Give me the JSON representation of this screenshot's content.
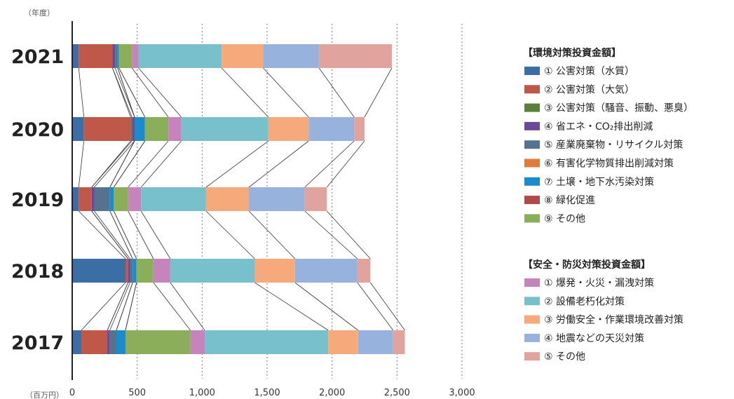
{
  "chart_data": {
    "type": "bar",
    "orientation": "horizontal",
    "stacked": true,
    "y_unit_label": "（年度）",
    "x_unit_label": "（百万円）",
    "xlim": [
      0,
      3000
    ],
    "x_ticks": [
      0,
      500,
      1000,
      1500,
      2000,
      2500,
      3000
    ],
    "x_tick_labels": [
      "0",
      "500",
      "1,000",
      "1,500",
      "2,000",
      "2,500",
      "3,000"
    ],
    "grid": "vertical-dotted",
    "legend_placement": "right",
    "categories": [
      "2021",
      "2020",
      "2019",
      "2018",
      "2017"
    ],
    "series": [
      {
        "name": "① 公害対策（水質）",
        "group": 0,
        "color": "#3a6ea5",
        "values": [
          50,
          90,
          50,
          410,
          70
        ]
      },
      {
        "name": "② 公害対策（大気）",
        "group": 0,
        "color": "#c0584a",
        "values": [
          260,
          360,
          100,
          20,
          200
        ]
      },
      {
        "name": "③ 公害対策（騒音、振動、悪臭）",
        "group": 0,
        "color": "#5d7f3a",
        "values": [
          0,
          10,
          0,
          0,
          0
        ]
      },
      {
        "name": "④ 省エネ・CO₂排出削減",
        "group": 0,
        "color": "#6a4a94",
        "values": [
          20,
          20,
          20,
          15,
          20
        ]
      },
      {
        "name": "⑤ 産業廃棄物・リサイクル対策",
        "group": 0,
        "color": "#55728f",
        "values": [
          20,
          0,
          120,
          20,
          50
        ]
      },
      {
        "name": "⑥ 有害化学物質排出削減対策",
        "group": 0,
        "color": "#e07b3e",
        "values": [
          0,
          0,
          0,
          0,
          0
        ]
      },
      {
        "name": "⑦ 土壌・地下水汚染対策",
        "group": 0,
        "color": "#1a8ccc",
        "values": [
          10,
          80,
          30,
          30,
          70
        ]
      },
      {
        "name": "⑧ 緑化促進",
        "group": 0,
        "color": "#b04a4a",
        "values": [
          0,
          0,
          0,
          0,
          0
        ]
      },
      {
        "name": "⑨ その他",
        "group": 0,
        "color": "#8aae5a",
        "values": [
          100,
          180,
          110,
          130,
          500
        ]
      },
      {
        "name": "① 爆発・火災・漏洩対策",
        "group": 1,
        "color": "#c684bd",
        "values": [
          50,
          100,
          100,
          130,
          110
        ]
      },
      {
        "name": "② 設備老朽化対策",
        "group": 1,
        "color": "#78c1cc",
        "values": [
          640,
          670,
          500,
          650,
          950
        ]
      },
      {
        "name": "③ 労働安全・作業環境改善対策",
        "group": 1,
        "color": "#f6aa7b",
        "values": [
          320,
          310,
          330,
          310,
          230
        ]
      },
      {
        "name": "④ 地震などの天災対策",
        "group": 1,
        "color": "#97b2dc",
        "values": [
          430,
          350,
          430,
          480,
          270
        ]
      },
      {
        "name": "⑤ その他",
        "group": 1,
        "color": "#e0a39e",
        "values": [
          560,
          80,
          170,
          100,
          90
        ]
      }
    ],
    "legend_groups": [
      {
        "title": "【環境対策投資金額】"
      },
      {
        "title": "【安全・防災対策投資金額】"
      }
    ]
  }
}
